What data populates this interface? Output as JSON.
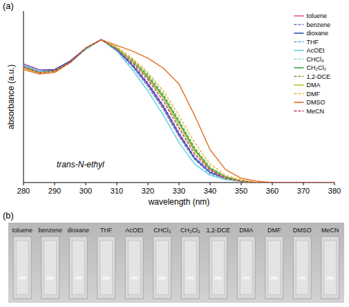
{
  "chart_data": {
    "type": "line",
    "panel_label": "(a)",
    "x_label": "wavelength (nm)",
    "y_label": "absorbance (a.u.)",
    "annotations": [
      "trans-N-ethyl"
    ],
    "x": [
      280,
      285,
      290,
      295,
      300,
      305,
      310,
      315,
      320,
      325,
      330,
      335,
      340,
      345,
      350,
      355,
      360,
      365,
      370,
      375,
      380
    ],
    "xlim": [
      280,
      380
    ],
    "xticks": [
      280,
      290,
      300,
      310,
      320,
      330,
      340,
      350,
      360,
      370,
      380
    ],
    "ylim": [
      0,
      1.2
    ],
    "tick_labels": "x",
    "legend": "top-right",
    "series": [
      {
        "name": "toluene",
        "color": "#e8509a",
        "line_style": "solid",
        "values": [
          0.83,
          0.79,
          0.79,
          0.85,
          0.94,
          1.0,
          0.93,
          0.82,
          0.68,
          0.52,
          0.33,
          0.17,
          0.07,
          0.03,
          0.01,
          0,
          0,
          0,
          0,
          0,
          0
        ]
      },
      {
        "name": "benzene",
        "color": "#7b68c8",
        "line_style": "dashed",
        "values": [
          0.83,
          0.79,
          0.79,
          0.85,
          0.94,
          1.0,
          0.93,
          0.83,
          0.7,
          0.54,
          0.35,
          0.18,
          0.08,
          0.03,
          0.01,
          0,
          0,
          0,
          0,
          0,
          0
        ]
      },
      {
        "name": "dioxane",
        "color": "#2f4fb5",
        "line_style": "solid",
        "values": [
          0.82,
          0.78,
          0.79,
          0.85,
          0.94,
          1.0,
          0.93,
          0.82,
          0.69,
          0.53,
          0.34,
          0.17,
          0.07,
          0.03,
          0.01,
          0,
          0,
          0,
          0,
          0,
          0
        ]
      },
      {
        "name": "THF",
        "color": "#5aa0d8",
        "line_style": "dashed",
        "values": [
          0.82,
          0.78,
          0.78,
          0.84,
          0.94,
          1.0,
          0.92,
          0.81,
          0.67,
          0.51,
          0.32,
          0.16,
          0.06,
          0.02,
          0.01,
          0,
          0,
          0,
          0,
          0,
          0
        ]
      },
      {
        "name": "AcOEt",
        "color": "#5bd0e0",
        "line_style": "solid",
        "values": [
          0.82,
          0.78,
          0.78,
          0.84,
          0.93,
          1.0,
          0.92,
          0.79,
          0.64,
          0.47,
          0.28,
          0.13,
          0.05,
          0.02,
          0.01,
          0,
          0,
          0,
          0,
          0,
          0
        ]
      },
      {
        "name": "CHCl₃",
        "color": "#7ed6b0",
        "line_style": "dashed",
        "values": [
          0.81,
          0.77,
          0.78,
          0.84,
          0.94,
          1.0,
          0.94,
          0.86,
          0.76,
          0.62,
          0.44,
          0.25,
          0.11,
          0.04,
          0.01,
          0,
          0,
          0,
          0,
          0,
          0
        ]
      },
      {
        "name": "CH₂Cl₂",
        "color": "#3aa83a",
        "line_style": "solid",
        "values": [
          0.81,
          0.77,
          0.78,
          0.84,
          0.94,
          1.0,
          0.94,
          0.85,
          0.74,
          0.6,
          0.42,
          0.23,
          0.1,
          0.04,
          0.01,
          0,
          0,
          0,
          0,
          0,
          0
        ]
      },
      {
        "name": "1,2-DCE",
        "color": "#7a9a30",
        "line_style": "dashed",
        "values": [
          0.81,
          0.77,
          0.78,
          0.84,
          0.94,
          1.0,
          0.94,
          0.86,
          0.75,
          0.61,
          0.43,
          0.24,
          0.1,
          0.04,
          0.01,
          0,
          0,
          0,
          0,
          0,
          0
        ]
      },
      {
        "name": "DMA",
        "color": "#a8c830",
        "line_style": "solid",
        "values": [
          0.8,
          0.77,
          0.78,
          0.84,
          0.94,
          1.0,
          0.94,
          0.85,
          0.73,
          0.59,
          0.4,
          0.22,
          0.09,
          0.03,
          0.01,
          0,
          0,
          0,
          0,
          0,
          0
        ]
      },
      {
        "name": "DMF",
        "color": "#f0b030",
        "line_style": "dashed",
        "values": [
          0.8,
          0.76,
          0.77,
          0.84,
          0.94,
          1.0,
          0.95,
          0.87,
          0.77,
          0.64,
          0.47,
          0.28,
          0.13,
          0.05,
          0.02,
          0,
          0,
          0,
          0,
          0,
          0
        ]
      },
      {
        "name": "DMSO",
        "color": "#e07020",
        "line_style": "solid",
        "values": [
          0.79,
          0.76,
          0.77,
          0.84,
          0.94,
          1.0,
          0.96,
          0.92,
          0.87,
          0.8,
          0.69,
          0.47,
          0.23,
          0.09,
          0.03,
          0.01,
          0,
          0,
          0,
          0,
          0
        ]
      },
      {
        "name": "MeCN",
        "color": "#c83050",
        "line_style": "dashed",
        "values": [
          0.81,
          0.77,
          0.78,
          0.84,
          0.94,
          1.0,
          0.93,
          0.84,
          0.72,
          0.57,
          0.38,
          0.2,
          0.09,
          0.03,
          0.01,
          0,
          0,
          0,
          0,
          0,
          0
        ]
      }
    ]
  },
  "photo": {
    "panel_label": "(b)",
    "labels": [
      "toluene",
      "benzene",
      "dioxane",
      "THF",
      "AcOEt",
      "CHCl₃",
      "CH₂Cl₂",
      "1,2-DCE",
      "DMA",
      "DMF",
      "DMSO",
      "MeCN"
    ]
  }
}
